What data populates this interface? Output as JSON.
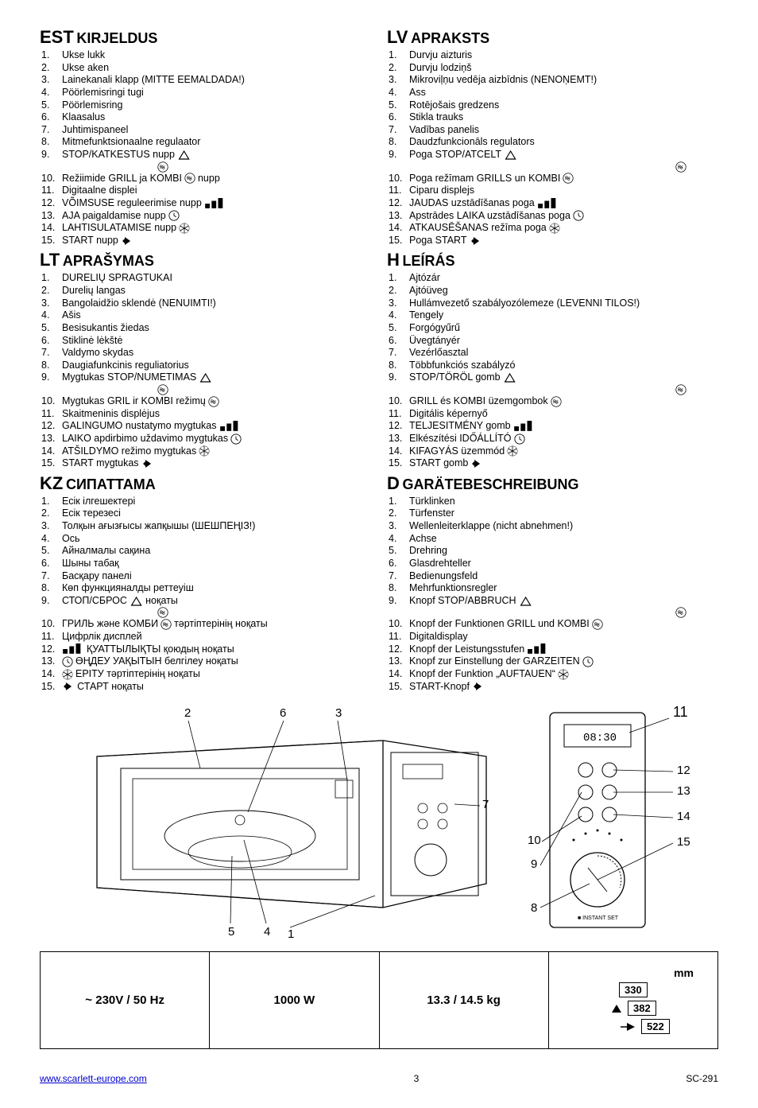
{
  "sections": {
    "est": {
      "lang": "EST",
      "title": "KIRJELDUS",
      "items": [
        {
          "n": "1.",
          "t": "Ukse lukk"
        },
        {
          "n": "2.",
          "t": "Ukse aken"
        },
        {
          "n": "3.",
          "t": "Lainekanali klapp (MITTE EEMALDADA!)"
        },
        {
          "n": "4.",
          "t": "Pöörlemisringi tugi"
        },
        {
          "n": "5.",
          "t": "Pöörlemisring"
        },
        {
          "n": "6.",
          "t": "Klaasalus"
        },
        {
          "n": "7.",
          "t": "Juhtimispaneel"
        },
        {
          "n": "8.",
          "t": "Mitmefunktsionaalne regulaator"
        },
        {
          "n": "9.",
          "t": "STOP/KATKESTUS nupp",
          "icons": [
            "stop"
          ],
          "below": [
            "wave"
          ]
        },
        {
          "n": "10.",
          "t": "Režiimide GRILL ja KOMBI",
          "icons": [
            "wave"
          ],
          "after": " nupp"
        },
        {
          "n": "11.",
          "t": "Digitaalne displei"
        },
        {
          "n": "12.",
          "t": "VÕIMSUSE reguleerimise nupp",
          "icons": [
            "power"
          ]
        },
        {
          "n": "13.",
          "t": "AJA paigaldamise nupp",
          "icons": [
            "clock"
          ]
        },
        {
          "n": "14.",
          "t": "LAHTISULATAMISE nupp",
          "icons": [
            "defrost"
          ]
        },
        {
          "n": "15.",
          "t": "START nupp",
          "icons": [
            "start"
          ]
        }
      ]
    },
    "lt": {
      "lang": "LT",
      "title": "APRAŠYMAS",
      "items": [
        {
          "n": "1.",
          "t": "DURELIŲ SPRAGTUKAI"
        },
        {
          "n": "2.",
          "t": "Durelių langas"
        },
        {
          "n": "3.",
          "t": "Bangolaidžio sklendė (NENUIMTI!)"
        },
        {
          "n": "4.",
          "t": "Ašis"
        },
        {
          "n": "5.",
          "t": "Besisukantis žiedas"
        },
        {
          "n": "6.",
          "t": "Stiklinė lėkštė"
        },
        {
          "n": "7.",
          "t": "Valdymo skydas"
        },
        {
          "n": "8.",
          "t": "Daugiafunkcinis reguliatorius"
        },
        {
          "n": "9.",
          "t": "Mygtukas STOP/NUMETIMAS",
          "icons": [
            "stop"
          ],
          "below": [
            "wave"
          ]
        },
        {
          "n": "10.",
          "t": "Mygtukas GRIL ir KOMBI režimų",
          "icons": [
            "wave"
          ]
        },
        {
          "n": "11.",
          "t": "Skaitmeninis displėjus"
        },
        {
          "n": "12.",
          "t": "GALINGUMO nustatymo mygtukas",
          "icons": [
            "power"
          ]
        },
        {
          "n": "13.",
          "t": "LAIKO apdirbimo uždavimo mygtukas",
          "icons": [
            "clock"
          ]
        },
        {
          "n": "14.",
          "t": "ATŠILDYMO režimo mygtukas",
          "icons": [
            "defrost"
          ]
        },
        {
          "n": "15.",
          "t": "START mygtukas",
          "icons": [
            "start"
          ]
        }
      ]
    },
    "kz": {
      "lang": "KZ",
      "title": "СИПАТТАМА",
      "items": [
        {
          "n": "1.",
          "t": "Есік ілгешектері"
        },
        {
          "n": "2.",
          "t": "Есік терезесі"
        },
        {
          "n": "3.",
          "t": "Толқын ағызғысы жапқышы (ШЕШПЕҢІЗ!)"
        },
        {
          "n": "4.",
          "t": "Ось"
        },
        {
          "n": "5.",
          "t": "Айналмалы сақина"
        },
        {
          "n": "6.",
          "t": "Шыны табақ"
        },
        {
          "n": "7.",
          "t": "Басқару панелі"
        },
        {
          "n": "8.",
          "t": "Көп функцияналды реттеуіш"
        },
        {
          "n": "9.",
          "t": "СТОП/СБРОС",
          "icons": [
            "stop"
          ],
          "after": " ноқаты",
          "below": [
            "wave"
          ]
        },
        {
          "n": "10.",
          "t": "ГРИЛЬ және КОМБИ",
          "icons": [
            "wave"
          ],
          "after": " тәртіптерінің ноқаты"
        },
        {
          "n": "11.",
          "t": "Цифрлік дисплей"
        },
        {
          "n": "12.",
          "t": "",
          "icons": [
            "power"
          ],
          "after": " ҚУАТТЫЛЫҚТЫ қоюдың ноқаты"
        },
        {
          "n": "13.",
          "t": "",
          "icons": [
            "clock"
          ],
          "after": " ӨҢДЕУ УАҚЫТЫН белгілеу ноқаты"
        },
        {
          "n": "14.",
          "t": "",
          "icons": [
            "defrost"
          ],
          "after": " ЕРІТУ тәртіптерінің ноқаты"
        },
        {
          "n": "15.",
          "t": "",
          "icons": [
            "start"
          ],
          "after": " СТАРТ ноқаты"
        }
      ]
    },
    "lv": {
      "lang": "LV",
      "title": "APRAKSTS",
      "items": [
        {
          "n": "1.",
          "t": "Durvju aizturis"
        },
        {
          "n": "2.",
          "t": "Durvju lodziņš"
        },
        {
          "n": "3.",
          "t": "Mikroviļņu vedēja aizbīdnis (NENOŅEMT!)"
        },
        {
          "n": "4.",
          "t": "Ass"
        },
        {
          "n": "5.",
          "t": "Rotējošais gredzens"
        },
        {
          "n": "6.",
          "t": "Stikla trauks"
        },
        {
          "n": "7.",
          "t": "Vadības panelis"
        },
        {
          "n": "8.",
          "t": "Daudzfunkcionāls regulators"
        },
        {
          "n": "9.",
          "t": "Poga STOP/ATCELT",
          "icons": [
            "stop"
          ],
          "below": [
            "wave"
          ]
        },
        {
          "n": "10.",
          "t": "Poga režīmam GRILLS un KOMBI",
          "icons": [
            "wave"
          ]
        },
        {
          "n": "11.",
          "t": "Ciparu displejs"
        },
        {
          "n": "12.",
          "t": "JAUDAS uzstādīšanas poga",
          "icons": [
            "power"
          ]
        },
        {
          "n": "13.",
          "t": "Apstrādes LAIKA uzstādīšanas poga",
          "icons": [
            "clock"
          ]
        },
        {
          "n": "14.",
          "t": "ATKAUSĒŠANAS režīma poga",
          "icons": [
            "defrost"
          ]
        },
        {
          "n": "15.",
          "t": "Poga START",
          "icons": [
            "start"
          ]
        }
      ]
    },
    "h": {
      "lang": "H",
      "title": "LEÍRÁS",
      "items": [
        {
          "n": "1.",
          "t": "Ajtózár"
        },
        {
          "n": "2.",
          "t": "Ajtóüveg"
        },
        {
          "n": "3.",
          "t": "Hullámvezető szabályozólemeze (LEVENNI TILOS!)"
        },
        {
          "n": "4.",
          "t": "Tengely"
        },
        {
          "n": "5.",
          "t": "Forgógyűrű"
        },
        {
          "n": "6.",
          "t": "Üvegtányér"
        },
        {
          "n": "7.",
          "t": "Vezérlőasztal"
        },
        {
          "n": "8.",
          "t": "Többfunkciós szabályzó"
        },
        {
          "n": "9.",
          "t": "STOP/TÖRÖL gomb",
          "icons": [
            "stop"
          ],
          "below": [
            "wave"
          ]
        },
        {
          "n": "10.",
          "t": "GRILL és KOMBI üzemgombok",
          "icons": [
            "wave"
          ]
        },
        {
          "n": "11.",
          "t": "Digitális képernyő"
        },
        {
          "n": "12.",
          "t": "TELJESITMÉNY gomb",
          "icons": [
            "power"
          ]
        },
        {
          "n": "13.",
          "t": "Elkészítési IDŐÁLLÍTÓ",
          "icons": [
            "clock"
          ]
        },
        {
          "n": "14.",
          "t": "KIFAGYÁS üzemmód",
          "icons": [
            "defrost"
          ]
        },
        {
          "n": "15.",
          "t": "START gomb",
          "icons": [
            "start"
          ]
        }
      ]
    },
    "d": {
      "lang": "D",
      "title": "GARÄTEBESCHREIBUNG",
      "items": [
        {
          "n": "1.",
          "t": "Türklinken"
        },
        {
          "n": "2.",
          "t": "Türfenster"
        },
        {
          "n": "3.",
          "t": "Wellenleiterklappe (nicht abnehmen!)"
        },
        {
          "n": "4.",
          "t": "Achse"
        },
        {
          "n": "5.",
          "t": "Drehring"
        },
        {
          "n": "6.",
          "t": "Glasdrehteller"
        },
        {
          "n": "7.",
          "t": "Bedienungsfeld"
        },
        {
          "n": "8.",
          "t": "Mehrfunktionsregler"
        },
        {
          "n": "9.",
          "t": "Knopf STOP/ABBRUCH",
          "icons": [
            "stop"
          ],
          "below": [
            "wave"
          ]
        },
        {
          "n": "10.",
          "t": "Knopf der Funktionen GRILL und KOMBI",
          "icons": [
            "wave"
          ]
        },
        {
          "n": "11.",
          "t": "Digitaldisplay"
        },
        {
          "n": "12.",
          "t": "Knopf der Leistungsstufen",
          "icons": [
            "power"
          ]
        },
        {
          "n": "13.",
          "t": "Knopf zur Einstellung der GARZEITEN",
          "icons": [
            "clock"
          ]
        },
        {
          "n": "14.",
          "t": "Knopf der Funktion „AUFTAUEN“",
          "icons": [
            "defrost"
          ]
        },
        {
          "n": "15.",
          "t": "START-Knopf",
          "icons": [
            "start"
          ]
        }
      ]
    }
  },
  "specs": {
    "c1": "~ 230V / 50 Hz",
    "c2": "1000 W",
    "c3": "13.3 / 14.5 kg",
    "mm": "mm",
    "d1": "330",
    "d2": "382",
    "d3": "522"
  },
  "diagram": {
    "callouts_top": [
      "2",
      "6",
      "3",
      "11"
    ],
    "callouts_right": [
      "12",
      "13",
      "14",
      "15"
    ],
    "callouts_left": [
      "7",
      "10",
      "9",
      "8"
    ],
    "callouts_bottom": [
      "5",
      "4",
      "1"
    ],
    "display": "08:30"
  },
  "footer": {
    "url": "www.scarlett-europe.com",
    "page": "3",
    "model": "SC-291"
  },
  "colors": {
    "text": "#000000",
    "link": "#0000cc",
    "bg": "#ffffff"
  }
}
